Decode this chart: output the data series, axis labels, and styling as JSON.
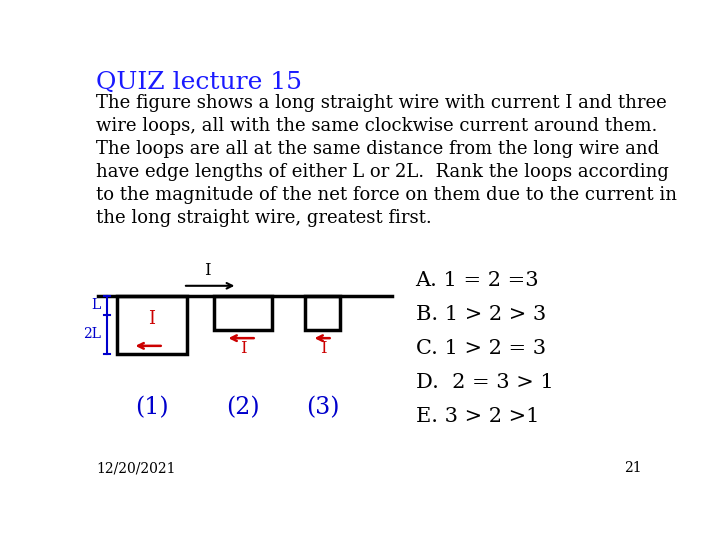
{
  "title": "QUIZ lecture 15",
  "title_color": "#1a1aff",
  "title_fontsize": 18,
  "body_text": "The figure shows a long straight wire with current I and three\nwire loops, all with the same clockwise current around them.\nThe loops are all at the same distance from the long wire and\nhave edge lengths of either L or 2L.  Rank the loops according\nto the magnitude of the net force on them due to the current in\nthe long straight wire, greatest first.",
  "body_fontsize": 13,
  "body_color": "#000000",
  "answers": [
    "A. 1 = 2 =3",
    "B. 1 > 2 > 3",
    "C. 1 > 2 = 3",
    "D.  2 = 3 > 1",
    "E. 3 > 2 >1"
  ],
  "answer_fontsize": 15,
  "answer_color": "#000000",
  "date_text": "12/20/2021",
  "page_num": "21",
  "bg_color": "#ffffff",
  "wire_color": "#000000",
  "loop_color": "#000000",
  "arrow_color": "#cc0000",
  "label_color": "#0000cc",
  "I_label_color": "#cc0000",
  "I_wire_color": "#000000",
  "marker_color": "#0000cc"
}
